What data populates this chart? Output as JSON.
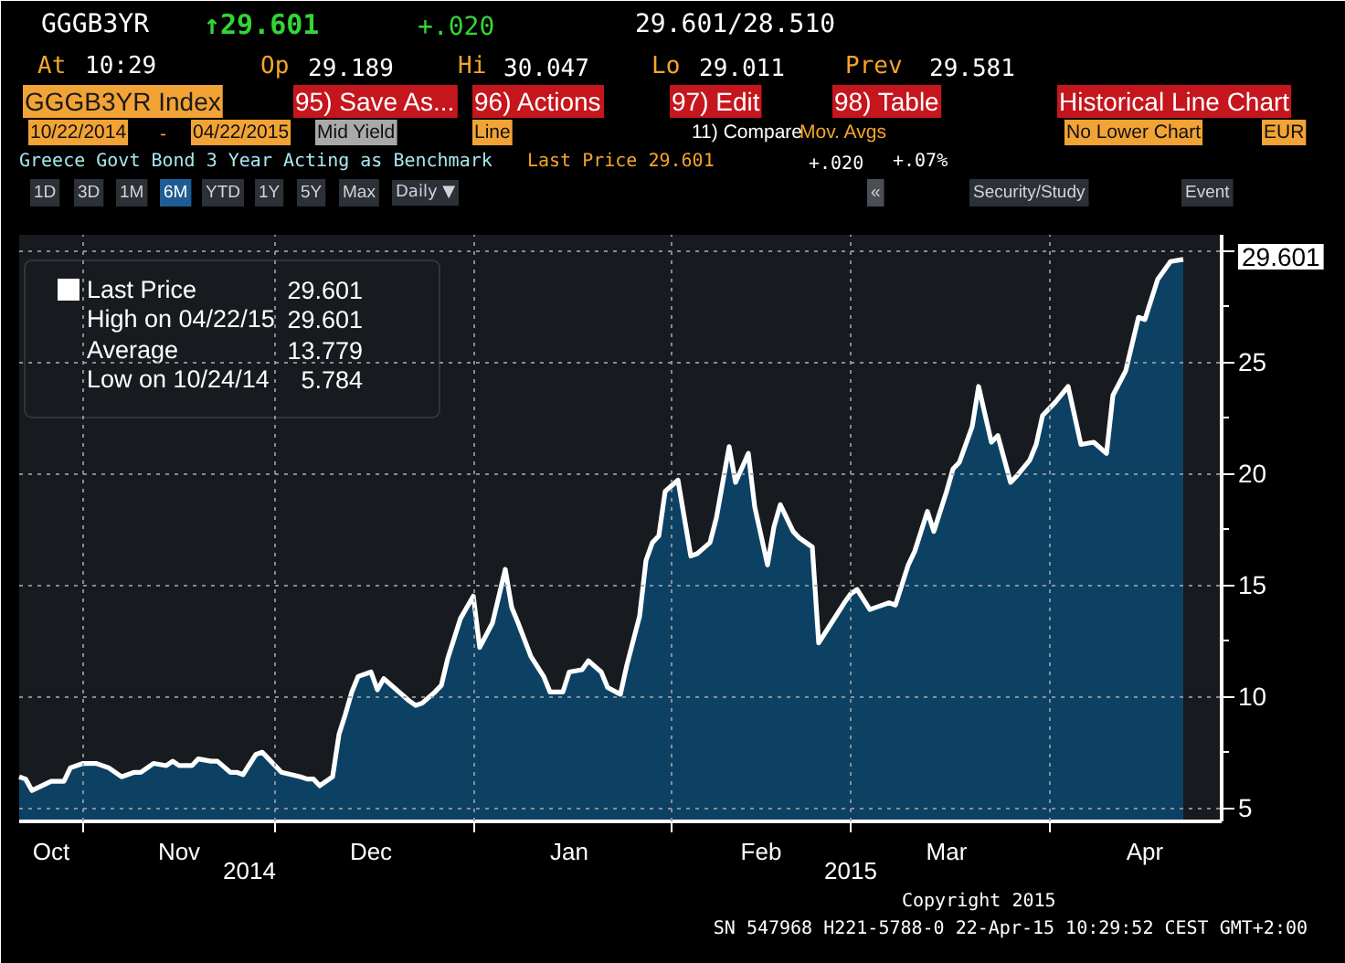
{
  "chart_data": {
    "type": "area",
    "title": "Greece Govt Bond 3 Year Acting as Benchmark",
    "x": [
      "2014-10-22",
      "2014-10-23",
      "2014-10-24",
      "2014-10-27",
      "2014-10-29",
      "2014-10-30",
      "2014-11-01",
      "2014-11-03",
      "2014-11-05",
      "2014-11-07",
      "2014-11-09",
      "2014-11-10",
      "2014-11-12",
      "2014-11-14",
      "2014-11-15",
      "2014-11-16",
      "2014-11-18",
      "2014-11-19",
      "2014-11-21",
      "2014-11-22",
      "2014-11-24",
      "2014-11-25",
      "2014-11-26",
      "2014-11-28",
      "2014-11-29",
      "2014-11-30",
      "2014-12-02",
      "2014-12-05",
      "2014-12-06",
      "2014-12-07",
      "2014-12-08",
      "2014-12-10",
      "2014-12-11",
      "2014-12-12",
      "2014-12-13",
      "2014-12-14",
      "2014-12-16",
      "2014-12-17",
      "2014-12-18",
      "2014-12-20",
      "2014-12-22",
      "2014-12-23",
      "2014-12-24",
      "2014-12-26",
      "2014-12-27",
      "2014-12-28",
      "2014-12-30",
      "2015-01-01",
      "2015-01-02",
      "2015-01-04",
      "2015-01-06",
      "2015-01-07",
      "2015-01-08",
      "2015-01-10",
      "2015-01-12",
      "2015-01-13",
      "2015-01-15",
      "2015-01-16",
      "2015-01-18",
      "2015-01-19",
      "2015-01-21",
      "2015-01-22",
      "2015-01-24",
      "2015-01-25",
      "2015-01-27",
      "2015-01-28",
      "2015-01-29",
      "2015-01-30",
      "2015-01-31",
      "2015-02-02",
      "2015-02-04",
      "2015-02-05",
      "2015-02-07",
      "2015-02-08",
      "2015-02-10",
      "2015-02-11",
      "2015-02-13",
      "2015-02-14",
      "2015-02-16",
      "2015-02-17",
      "2015-02-18",
      "2015-02-20",
      "2015-02-21",
      "2015-02-23",
      "2015-02-24",
      "2015-02-26",
      "2015-02-28",
      "2015-03-01",
      "2015-03-02",
      "2015-03-04",
      "2015-03-05",
      "2015-03-07",
      "2015-03-08",
      "2015-03-10",
      "2015-03-11",
      "2015-03-13",
      "2015-03-14",
      "2015-03-16",
      "2015-03-17",
      "2015-03-18",
      "2015-03-20",
      "2015-03-21",
      "2015-03-23",
      "2015-03-24",
      "2015-03-26",
      "2015-03-27",
      "2015-03-29",
      "2015-03-30",
      "2015-03-31",
      "2015-04-02",
      "2015-04-04",
      "2015-04-06",
      "2015-04-08",
      "2015-04-10",
      "2015-04-11",
      "2015-04-13",
      "2015-04-15",
      "2015-04-16",
      "2015-04-18",
      "2015-04-20",
      "2015-04-22"
    ],
    "series": [
      {
        "name": "Last Price",
        "color": "#ffffff",
        "values": [
          6.4,
          6.3,
          5.784,
          6.2,
          6.2,
          6.8,
          7.0,
          7.0,
          6.8,
          6.4,
          6.6,
          6.6,
          7.0,
          6.9,
          7.1,
          6.9,
          6.9,
          7.2,
          7.1,
          7.1,
          6.6,
          6.6,
          6.5,
          7.4,
          7.5,
          7.2,
          6.6,
          6.4,
          6.3,
          6.3,
          6.0,
          6.4,
          8.3,
          9.2,
          10.2,
          10.9,
          11.1,
          10.3,
          10.8,
          10.3,
          9.8,
          9.6,
          9.7,
          10.2,
          10.5,
          11.7,
          13.5,
          14.5,
          12.2,
          13.3,
          15.7,
          14.0,
          13.3,
          11.8,
          10.9,
          10.2,
          10.2,
          11.1,
          11.2,
          11.6,
          11.1,
          10.4,
          10.1,
          11.4,
          13.6,
          16.1,
          16.9,
          17.2,
          19.2,
          19.7,
          16.3,
          16.4,
          16.9,
          18.0,
          21.2,
          19.6,
          20.9,
          18.5,
          15.9,
          17.6,
          18.6,
          17.4,
          17.1,
          16.7,
          12.4,
          13.3,
          14.2,
          14.6,
          14.8,
          13.9,
          14.0,
          14.2,
          14.1,
          15.9,
          16.5,
          18.3,
          17.4,
          19.2,
          20.2,
          20.5,
          22.1,
          23.9,
          21.4,
          21.7,
          19.6,
          19.9,
          20.6,
          21.3,
          22.6,
          23.2,
          23.9,
          21.3,
          21.4,
          20.9,
          23.5,
          24.6,
          27.0,
          26.9,
          28.7,
          29.5,
          29.601
        ]
      }
    ],
    "xlim": [
      "2014-10-22",
      "2015-04-28"
    ],
    "xticks": [
      {
        "value": "2014-10-27",
        "label": "Oct"
      },
      {
        "value": "2014-11-01",
        "label": null
      },
      {
        "value": "2014-11-16",
        "label": "Nov"
      },
      {
        "value": "2014-12-01",
        "label": null
      },
      {
        "value": "2014-12-16",
        "label": "Dec"
      },
      {
        "value": "2015-01-01",
        "label": null
      },
      {
        "value": "2015-01-16",
        "label": "Jan"
      },
      {
        "value": "2015-02-01",
        "label": null
      },
      {
        "value": "2015-02-15",
        "label": "Feb"
      },
      {
        "value": "2015-03-01",
        "label": null
      },
      {
        "value": "2015-03-16",
        "label": "Mar"
      },
      {
        "value": "2015-04-01",
        "label": null
      },
      {
        "value": "2015-04-16",
        "label": "Apr"
      }
    ],
    "ylim": [
      4.4,
      30.7
    ],
    "yticks": [
      5,
      10,
      15,
      20,
      25,
      {
        "value": 30,
        "label": null
      }
    ],
    "grid": true,
    "legend": "top left",
    "annotations": [
      "GGGB3YR",
      "↑29.601",
      "+.020",
      "29.601/28.510",
      "At",
      "10:29",
      "Op",
      "29.189",
      "Hi",
      "30.047",
      "Lo",
      "29.011",
      "Prev",
      "29.581",
      "GGGB3YR Index",
      "95) Save As...",
      "96) Actions",
      "97) Edit",
      "98) Table",
      "Historical Line Chart",
      "10/22/2014",
      "-",
      "04/22/2015",
      "Mid Yield",
      "Line",
      "11) Compare",
      "Mov. Avgs",
      "No Lower Chart",
      "EUR",
      "Last Price 29.601",
      "+.020",
      "+.07%",
      "1D",
      "3D",
      "1M",
      "6M",
      "YTD",
      "1Y",
      "5Y",
      "Max",
      "Daily ▼",
      "«",
      "Security/Study",
      "Event",
      "29.601",
      "High on 04/22/15",
      "29.601",
      "Average",
      "13.779",
      "Low on 10/24/14",
      "5.784",
      "29.601",
      "2014",
      "2015",
      "Copyright 2015",
      "SN 547968 H221-5788-0 22-Apr-15 10:29:52 CEST GMT+2:00"
    ]
  }
}
